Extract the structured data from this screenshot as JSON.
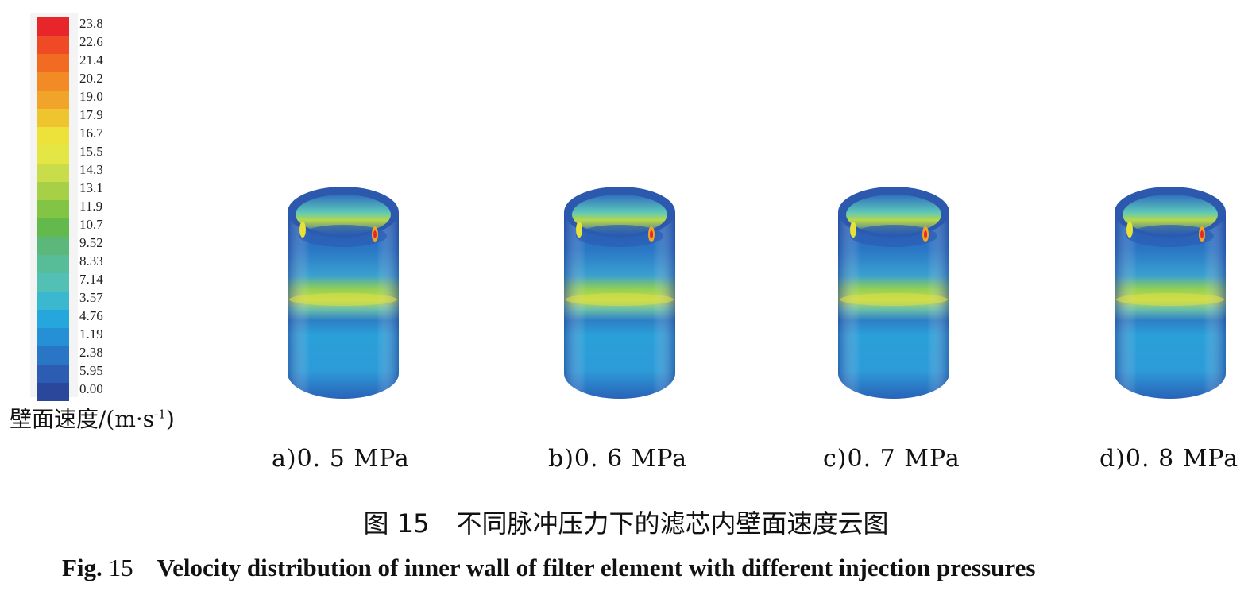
{
  "legend": {
    "ticks": [
      "23.8",
      "22.6",
      "21.4",
      "20.2",
      "19.0",
      "17.9",
      "16.7",
      "15.5",
      "14.3",
      "13.1",
      "11.9",
      "10.7",
      "9.52",
      "8.33",
      "7.14",
      "3.57",
      "4.76",
      "1.19",
      "2.38",
      "5.95",
      "0.00"
    ],
    "colors": [
      "#e8262a",
      "#ee4a25",
      "#f26b22",
      "#f28a25",
      "#f0a52a",
      "#eec52e",
      "#ece23a",
      "#e4e646",
      "#c9dc4a",
      "#a8d046",
      "#82c444",
      "#63b94b",
      "#5cb87a",
      "#57bd98",
      "#52c0b4",
      "#39b8d0",
      "#25a7de",
      "#2590d6",
      "#2a76c6",
      "#2c5db2",
      "#2b479c"
    ],
    "unit_label": "壁面速度/(m·s",
    "unit_sup": "-1",
    "unit_close": ")"
  },
  "panels": [
    {
      "label": "a)0. 5 MPa"
    },
    {
      "label": "b)0. 6 MPa"
    },
    {
      "label": "c)0. 7 MPa"
    },
    {
      "label": "d)0. 8 MPa"
    }
  ],
  "caption_cn": {
    "number": "图 15",
    "text": "不同脉冲压力下的滤芯内壁面速度云图"
  },
  "caption_en": {
    "prefix": "Fig.",
    "number": "15",
    "text": "Velocity distribution of inner wall of filter element with different injection pressures"
  }
}
